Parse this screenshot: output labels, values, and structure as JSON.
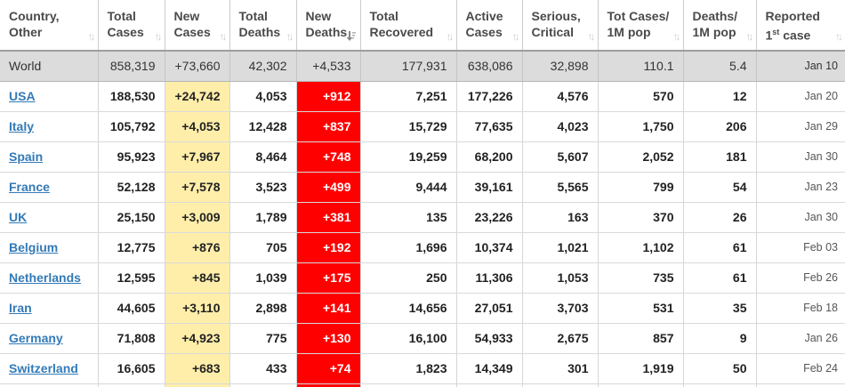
{
  "table": {
    "columns": [
      {
        "id": "country",
        "line1": "Country,",
        "line2": "Other",
        "sort": "both"
      },
      {
        "id": "total_cases",
        "line1": "Total",
        "line2": "Cases",
        "sort": "both"
      },
      {
        "id": "new_cases",
        "line1": "New",
        "line2": "Cases",
        "sort": "both"
      },
      {
        "id": "total_deaths",
        "line1": "Total",
        "line2": "Deaths",
        "sort": "both"
      },
      {
        "id": "new_deaths",
        "line1": "New",
        "line2": "Deaths",
        "sort": "desc_active"
      },
      {
        "id": "total_recovered",
        "line1": "Total",
        "line2": "Recovered",
        "sort": "both"
      },
      {
        "id": "active_cases",
        "line1": "Active",
        "line2": "Cases",
        "sort": "both"
      },
      {
        "id": "serious_critical",
        "line1": "Serious,",
        "line2": "Critical",
        "sort": "both"
      },
      {
        "id": "cases_1m",
        "line1": "Tot Cases/",
        "line2": "1M pop",
        "sort": "both"
      },
      {
        "id": "deaths_1m",
        "line1": "Deaths/",
        "line2": "1M pop",
        "sort": "both"
      },
      {
        "id": "reported",
        "line1": "Reported",
        "line2_prefix": "1",
        "line2_sup": "st",
        "line2_suffix": " case",
        "sort": "both"
      }
    ],
    "world_row": {
      "country": "World",
      "total_cases": "858,319",
      "new_cases": "+73,660",
      "total_deaths": "42,302",
      "new_deaths": "+4,533",
      "total_recovered": "177,931",
      "active_cases": "638,086",
      "serious_critical": "32,898",
      "cases_1m": "110.1",
      "deaths_1m": "5.4",
      "reported": "Jan 10"
    },
    "rows": [
      {
        "country": "USA",
        "total_cases": "188,530",
        "new_cases": "+24,742",
        "total_deaths": "4,053",
        "new_deaths": "+912",
        "total_recovered": "7,251",
        "active_cases": "177,226",
        "serious_critical": "4,576",
        "cases_1m": "570",
        "deaths_1m": "12",
        "reported": "Jan 20"
      },
      {
        "country": "Italy",
        "total_cases": "105,792",
        "new_cases": "+4,053",
        "total_deaths": "12,428",
        "new_deaths": "+837",
        "total_recovered": "15,729",
        "active_cases": "77,635",
        "serious_critical": "4,023",
        "cases_1m": "1,750",
        "deaths_1m": "206",
        "reported": "Jan 29"
      },
      {
        "country": "Spain",
        "total_cases": "95,923",
        "new_cases": "+7,967",
        "total_deaths": "8,464",
        "new_deaths": "+748",
        "total_recovered": "19,259",
        "active_cases": "68,200",
        "serious_critical": "5,607",
        "cases_1m": "2,052",
        "deaths_1m": "181",
        "reported": "Jan 30"
      },
      {
        "country": "France",
        "total_cases": "52,128",
        "new_cases": "+7,578",
        "total_deaths": "3,523",
        "new_deaths": "+499",
        "total_recovered": "9,444",
        "active_cases": "39,161",
        "serious_critical": "5,565",
        "cases_1m": "799",
        "deaths_1m": "54",
        "reported": "Jan 23"
      },
      {
        "country": "UK",
        "total_cases": "25,150",
        "new_cases": "+3,009",
        "total_deaths": "1,789",
        "new_deaths": "+381",
        "total_recovered": "135",
        "active_cases": "23,226",
        "serious_critical": "163",
        "cases_1m": "370",
        "deaths_1m": "26",
        "reported": "Jan 30"
      },
      {
        "country": "Belgium",
        "total_cases": "12,775",
        "new_cases": "+876",
        "total_deaths": "705",
        "new_deaths": "+192",
        "total_recovered": "1,696",
        "active_cases": "10,374",
        "serious_critical": "1,021",
        "cases_1m": "1,102",
        "deaths_1m": "61",
        "reported": "Feb 03"
      },
      {
        "country": "Netherlands",
        "total_cases": "12,595",
        "new_cases": "+845",
        "total_deaths": "1,039",
        "new_deaths": "+175",
        "total_recovered": "250",
        "active_cases": "11,306",
        "serious_critical": "1,053",
        "cases_1m": "735",
        "deaths_1m": "61",
        "reported": "Feb 26"
      },
      {
        "country": "Iran",
        "total_cases": "44,605",
        "new_cases": "+3,110",
        "total_deaths": "2,898",
        "new_deaths": "+141",
        "total_recovered": "14,656",
        "active_cases": "27,051",
        "serious_critical": "3,703",
        "cases_1m": "531",
        "deaths_1m": "35",
        "reported": "Feb 18"
      },
      {
        "country": "Germany",
        "total_cases": "71,808",
        "new_cases": "+4,923",
        "total_deaths": "775",
        "new_deaths": "+130",
        "total_recovered": "16,100",
        "active_cases": "54,933",
        "serious_critical": "2,675",
        "cases_1m": "857",
        "deaths_1m": "9",
        "reported": "Jan 26"
      },
      {
        "country": "Switzerland",
        "total_cases": "16,605",
        "new_cases": "+683",
        "total_deaths": "433",
        "new_deaths": "+74",
        "total_recovered": "1,823",
        "active_cases": "14,349",
        "serious_critical": "301",
        "cases_1m": "1,919",
        "deaths_1m": "50",
        "reported": "Feb 24"
      }
    ],
    "partial_next_row_visible": true
  },
  "icons": {
    "sort_inactive": "up-down-arrows",
    "sort_active": "sort-descending-bars",
    "sort_inactive_glyph": "↑↓"
  },
  "colors": {
    "link_blue": "#337ab7",
    "new_cases_bg": "#ffeeaa",
    "new_deaths_bg": "#ff0000",
    "new_deaths_text": "#ffffff",
    "world_row_bg": "#dcdcdc",
    "header_text": "#4a4a4a"
  }
}
